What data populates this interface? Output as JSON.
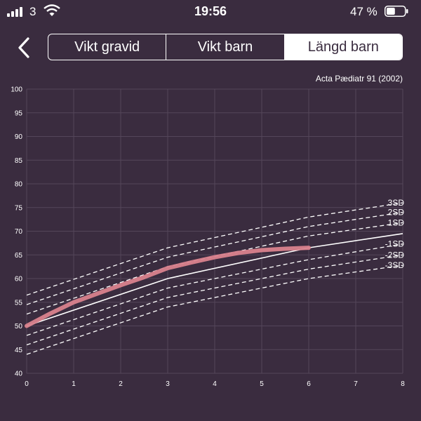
{
  "status_bar": {
    "carrier": "3",
    "time": "19:56",
    "battery": "47 %",
    "battery_level": 0.47,
    "icons": [
      "signal-icon",
      "wifi-icon",
      "battery-icon"
    ]
  },
  "header": {
    "back_icon": "chevron-left-icon",
    "tabs": [
      {
        "label": "Vikt gravid",
        "active": false
      },
      {
        "label": "Vikt barn",
        "active": false
      },
      {
        "label": "Längd barn",
        "active": true
      }
    ]
  },
  "chart_data": {
    "type": "line",
    "source": "Acta Pædiatr 91 (2002)",
    "xlim": [
      0,
      8
    ],
    "ylim": [
      40,
      100
    ],
    "xticks": [
      "0",
      "1",
      "2",
      "3",
      "4",
      "5",
      "6",
      "7",
      "8"
    ],
    "yticks": [
      "40",
      "45",
      "50",
      "55",
      "60",
      "65",
      "70",
      "75",
      "80",
      "85",
      "90",
      "95",
      "100"
    ],
    "grid": true,
    "x": [
      0,
      3,
      6,
      8
    ],
    "series": [
      {
        "name": "3SD",
        "style": "dashed",
        "values": [
          56.5,
          66.5,
          73.0,
          76.0
        ]
      },
      {
        "name": "2SD",
        "style": "dashed",
        "values": [
          54.5,
          64.5,
          71.0,
          74.0
        ]
      },
      {
        "name": "1SD",
        "style": "dashed",
        "values": [
          52.5,
          62.5,
          69.0,
          71.8
        ]
      },
      {
        "name": "",
        "style": "solid",
        "values": [
          50.0,
          60.0,
          66.5,
          69.5
        ]
      },
      {
        "name": "-1SD",
        "style": "dashed",
        "values": [
          48.0,
          58.0,
          64.0,
          67.3
        ]
      },
      {
        "name": "-2SD",
        "style": "dashed",
        "values": [
          46.0,
          56.0,
          62.0,
          65.0
        ]
      },
      {
        "name": "-3SD",
        "style": "dashed",
        "values": [
          44.0,
          54.0,
          60.0,
          62.8
        ]
      }
    ],
    "measurement": {
      "x": [
        0,
        0.5,
        1,
        1.5,
        2,
        2.5,
        3,
        3.5,
        4,
        4.5,
        5,
        5.5,
        6
      ],
      "values": [
        50.0,
        52.6,
        55.0,
        56.8,
        58.6,
        60.3,
        62.2,
        63.4,
        64.5,
        65.4,
        66.0,
        66.3,
        66.5
      ],
      "color": "#d9828d"
    }
  }
}
